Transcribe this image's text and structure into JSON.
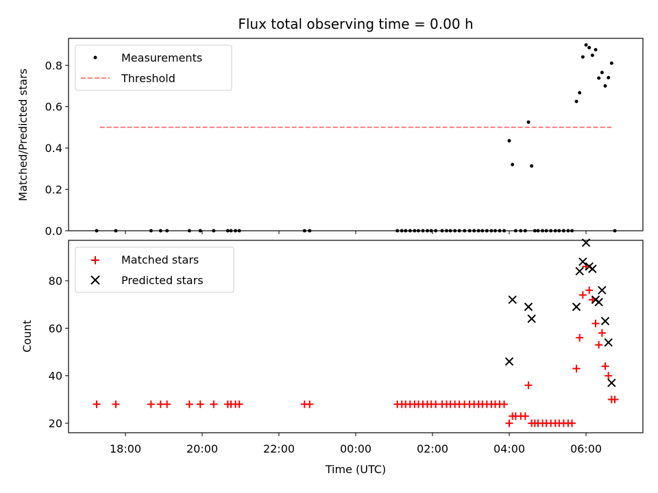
{
  "title": "Flux total observing time = 0.00 h",
  "chart_data": [
    {
      "type": "scatter",
      "panel": "top",
      "ylabel": "Matched/Predicted stars",
      "xlabel": "",
      "x_axis_type": "time",
      "x_ticks": [
        "18:00",
        "20:00",
        "22:00",
        "00:00",
        "02:00",
        "04:00",
        "06:00"
      ],
      "y_ticks": [
        "0.0",
        "0.2",
        "0.4",
        "0.6",
        "0.8"
      ],
      "ylim": [
        0,
        0.93
      ],
      "grid": false,
      "legend_position": "upper-left",
      "series": [
        {
          "name": "Measurements",
          "kind": "scatter",
          "marker": "dot",
          "color": "#000000",
          "points": [
            [
              "17:15",
              0
            ],
            [
              "17:45",
              0
            ],
            [
              "18:40",
              0
            ],
            [
              "18:55",
              0
            ],
            [
              "19:05",
              0
            ],
            [
              "19:40",
              0
            ],
            [
              "19:57",
              0
            ],
            [
              "20:18",
              0
            ],
            [
              "20:40",
              0
            ],
            [
              "20:45",
              0
            ],
            [
              "20:52",
              0
            ],
            [
              "20:58",
              0
            ],
            [
              "22:40",
              0
            ],
            [
              "22:48",
              0
            ],
            [
              "01:05",
              0
            ],
            [
              "01:12",
              0
            ],
            [
              "01:18",
              0
            ],
            [
              "01:25",
              0
            ],
            [
              "01:32",
              0
            ],
            [
              "01:38",
              0
            ],
            [
              "01:45",
              0
            ],
            [
              "01:52",
              0
            ],
            [
              "01:58",
              0
            ],
            [
              "02:05",
              0
            ],
            [
              "02:15",
              0
            ],
            [
              "02:22",
              0
            ],
            [
              "02:28",
              0
            ],
            [
              "02:35",
              0
            ],
            [
              "02:42",
              0
            ],
            [
              "02:50",
              0
            ],
            [
              "02:58",
              0
            ],
            [
              "03:05",
              0
            ],
            [
              "03:12",
              0
            ],
            [
              "03:18",
              0
            ],
            [
              "03:25",
              0
            ],
            [
              "03:32",
              0
            ],
            [
              "03:38",
              0
            ],
            [
              "03:45",
              0
            ],
            [
              "03:52",
              0
            ],
            [
              "04:00",
              0.435
            ],
            [
              "04:05",
              0.32
            ],
            [
              "04:10",
              0
            ],
            [
              "04:18",
              0
            ],
            [
              "04:25",
              0
            ],
            [
              "04:30",
              0.525
            ],
            [
              "04:35",
              0.313
            ],
            [
              "04:40",
              0
            ],
            [
              "04:45",
              0
            ],
            [
              "04:52",
              0
            ],
            [
              "04:58",
              0
            ],
            [
              "05:05",
              0
            ],
            [
              "05:12",
              0
            ],
            [
              "05:18",
              0
            ],
            [
              "05:25",
              0
            ],
            [
              "05:32",
              0
            ],
            [
              "05:38",
              0
            ],
            [
              "05:45",
              0.625
            ],
            [
              "05:50",
              0.667
            ],
            [
              "05:55",
              0.84
            ],
            [
              "06:00",
              0.898
            ],
            [
              "06:05",
              0.885
            ],
            [
              "06:10",
              0.848
            ],
            [
              "06:15",
              0.875
            ],
            [
              "06:20",
              0.738
            ],
            [
              "06:25",
              0.765
            ],
            [
              "06:30",
              0.7
            ],
            [
              "06:35",
              0.74
            ],
            [
              "06:40",
              0.81
            ],
            [
              "06:45",
              0
            ]
          ]
        },
        {
          "name": "Threshold",
          "kind": "line",
          "style": "dashed",
          "color": "#ff7f7f",
          "points": [
            [
              "17:20",
              0.5
            ],
            [
              "06:40",
              0.5
            ]
          ]
        }
      ]
    },
    {
      "type": "scatter",
      "panel": "bottom",
      "ylabel": "Count",
      "xlabel": "Time (UTC)",
      "x_axis_type": "time",
      "x_ticks": [
        "18:00",
        "20:00",
        "22:00",
        "00:00",
        "02:00",
        "04:00",
        "06:00"
      ],
      "y_ticks": [
        "20",
        "40",
        "60",
        "80"
      ],
      "ylim": [
        16,
        97
      ],
      "grid": false,
      "legend_position": "upper-left",
      "series": [
        {
          "name": "Matched stars",
          "kind": "scatter",
          "marker": "plus",
          "color": "#ff0000",
          "points": [
            [
              "17:15",
              28
            ],
            [
              "17:45",
              28
            ],
            [
              "18:40",
              28
            ],
            [
              "18:55",
              28
            ],
            [
              "19:05",
              28
            ],
            [
              "19:40",
              28
            ],
            [
              "19:57",
              28
            ],
            [
              "20:18",
              28
            ],
            [
              "20:40",
              28
            ],
            [
              "20:45",
              28
            ],
            [
              "20:52",
              28
            ],
            [
              "20:58",
              28
            ],
            [
              "22:40",
              28
            ],
            [
              "22:48",
              28
            ],
            [
              "01:05",
              28
            ],
            [
              "01:12",
              28
            ],
            [
              "01:18",
              28
            ],
            [
              "01:25",
              28
            ],
            [
              "01:32",
              28
            ],
            [
              "01:38",
              28
            ],
            [
              "01:45",
              28
            ],
            [
              "01:52",
              28
            ],
            [
              "01:58",
              28
            ],
            [
              "02:05",
              28
            ],
            [
              "02:15",
              28
            ],
            [
              "02:22",
              28
            ],
            [
              "02:28",
              28
            ],
            [
              "02:35",
              28
            ],
            [
              "02:42",
              28
            ],
            [
              "02:50",
              28
            ],
            [
              "02:58",
              28
            ],
            [
              "03:05",
              28
            ],
            [
              "03:12",
              28
            ],
            [
              "03:18",
              28
            ],
            [
              "03:25",
              28
            ],
            [
              "03:32",
              28
            ],
            [
              "03:38",
              28
            ],
            [
              "03:45",
              28
            ],
            [
              "03:52",
              28
            ],
            [
              "04:00",
              20
            ],
            [
              "04:05",
              23
            ],
            [
              "04:10",
              23
            ],
            [
              "04:18",
              23
            ],
            [
              "04:25",
              23
            ],
            [
              "04:30",
              36
            ],
            [
              "04:35",
              20
            ],
            [
              "04:40",
              20
            ],
            [
              "04:45",
              20
            ],
            [
              "04:52",
              20
            ],
            [
              "04:58",
              20
            ],
            [
              "05:05",
              20
            ],
            [
              "05:12",
              20
            ],
            [
              "05:18",
              20
            ],
            [
              "05:25",
              20
            ],
            [
              "05:32",
              20
            ],
            [
              "05:38",
              20
            ],
            [
              "05:45",
              43
            ],
            [
              "05:50",
              56
            ],
            [
              "05:55",
              74
            ],
            [
              "06:00",
              86
            ],
            [
              "06:05",
              76
            ],
            [
              "06:10",
              72
            ],
            [
              "06:15",
              62
            ],
            [
              "06:20",
              53
            ],
            [
              "06:25",
              58
            ],
            [
              "06:30",
              44
            ],
            [
              "06:35",
              40
            ],
            [
              "06:40",
              30
            ],
            [
              "06:45",
              30
            ]
          ]
        },
        {
          "name": "Predicted stars",
          "kind": "scatter",
          "marker": "x",
          "color": "#000000",
          "points": [
            [
              "04:00",
              46
            ],
            [
              "04:05",
              72
            ],
            [
              "04:30",
              69
            ],
            [
              "04:35",
              64
            ],
            [
              "05:45",
              69
            ],
            [
              "05:50",
              84
            ],
            [
              "05:55",
              88
            ],
            [
              "06:00",
              96
            ],
            [
              "06:05",
              86
            ],
            [
              "06:10",
              85
            ],
            [
              "06:15",
              72
            ],
            [
              "06:20",
              71
            ],
            [
              "06:25",
              76
            ],
            [
              "06:30",
              63
            ],
            [
              "06:35",
              54
            ],
            [
              "06:40",
              37
            ]
          ]
        }
      ]
    }
  ]
}
